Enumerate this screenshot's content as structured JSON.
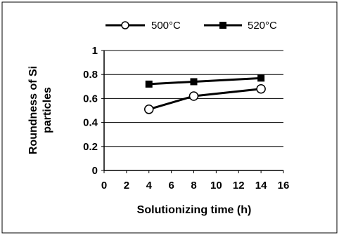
{
  "chart_data": {
    "type": "line",
    "title": "",
    "xlabel": "Solutionizing time (h)",
    "ylabel_lines": [
      "Roundness of Si",
      "particles"
    ],
    "xlim": [
      0,
      16
    ],
    "ylim": [
      0,
      1
    ],
    "x_ticks": [
      "0",
      "2",
      "4",
      "6",
      "8",
      "10",
      "12",
      "14",
      "16"
    ],
    "y_ticks": [
      "0",
      "0.2",
      "0.4",
      "0.6",
      "0.8",
      "1"
    ],
    "grid": "horizontal",
    "legend_position": "top",
    "series": [
      {
        "name": "500°C",
        "marker": "circle-open",
        "color": "#000000",
        "x": [
          4,
          8,
          14
        ],
        "y": [
          0.51,
          0.62,
          0.68
        ]
      },
      {
        "name": "520°C",
        "marker": "square-filled",
        "color": "#000000",
        "x": [
          4,
          8,
          14
        ],
        "y": [
          0.72,
          0.74,
          0.77
        ]
      }
    ]
  }
}
